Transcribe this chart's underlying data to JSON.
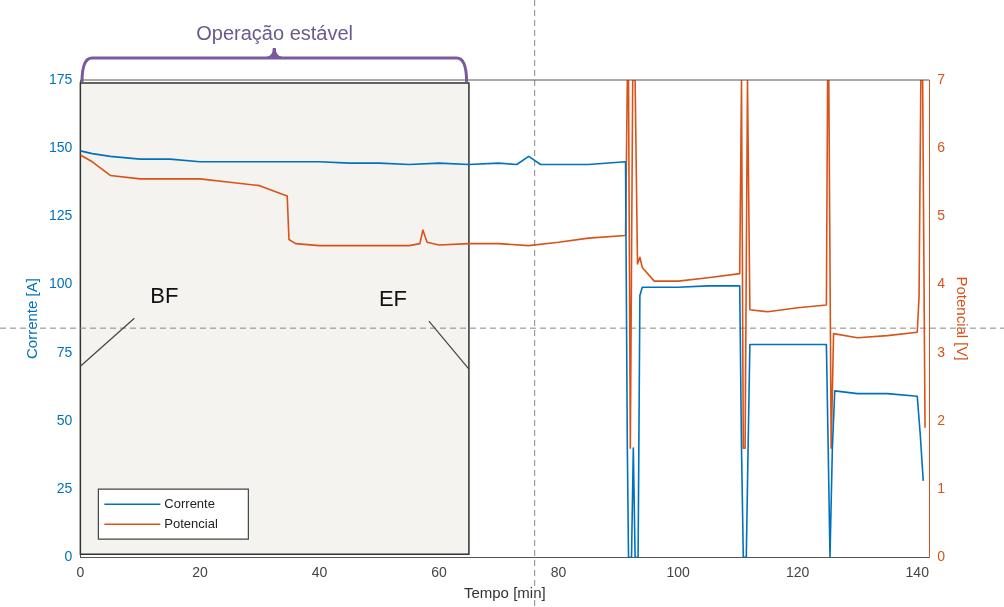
{
  "chart_data": {
    "type": "line",
    "xlabel": "Tempo [min]",
    "ylabel": "Corrente [A]",
    "y2label": "Potencial [V]",
    "xlim": [
      0,
      142
    ],
    "xticks": [
      0,
      20,
      40,
      60,
      80,
      100,
      120,
      140
    ],
    "ylim": [
      0,
      175
    ],
    "yticks": [
      0,
      25,
      50,
      75,
      100,
      125,
      150,
      175
    ],
    "y2lim": [
      0,
      7
    ],
    "y2ticks": [
      0,
      1,
      2,
      3,
      4,
      5,
      6,
      7
    ],
    "grid": false,
    "legend": "bottom left",
    "line_style": "solid",
    "marker": "none",
    "series": [
      {
        "name": "Corrente",
        "color": "#0072bd",
        "x": [
          0,
          2,
          5,
          10,
          15,
          20,
          25,
          30,
          35,
          40,
          45,
          50,
          55,
          60,
          65,
          70,
          73,
          75,
          77,
          80,
          85,
          91.2,
          91.5,
          91.7,
          92.2,
          92.5,
          92.8,
          93.3,
          93.6,
          94,
          100,
          105,
          110.3,
          110.6,
          110.9,
          111.4,
          111.7,
          112,
          115,
          120,
          124.8,
          125.1,
          125.4,
          125.8,
          126.2,
          130,
          135,
          140,
          140.5,
          141
        ],
        "values": [
          149,
          148,
          147,
          146,
          146,
          145,
          145,
          145,
          145,
          145,
          144.5,
          144.5,
          144,
          144.5,
          144,
          144.5,
          144,
          147,
          144,
          144,
          144,
          145,
          40,
          0,
          0,
          40,
          0,
          0,
          96,
          99,
          99,
          99.5,
          99.5,
          40,
          0,
          0,
          40,
          78,
          78,
          78,
          78,
          40,
          0,
          40,
          61,
          60,
          60,
          59,
          45,
          28
        ]
      },
      {
        "name": "Potencial",
        "color": "#d95319",
        "axis": "y2",
        "x": [
          0,
          2,
          5,
          10,
          15,
          20,
          25,
          30,
          33,
          34.6,
          34.9,
          36,
          40,
          45,
          50,
          55,
          56.8,
          57.3,
          58,
          60,
          65,
          70,
          75,
          80,
          85,
          91.2,
          91.5,
          91.7,
          92,
          92.4,
          92.8,
          93.2,
          93.6,
          94,
          96,
          100,
          105,
          110.3,
          110.6,
          110.9,
          111.2,
          111.6,
          112,
          115,
          120,
          124.8,
          125,
          125.2,
          125.6,
          126,
          130,
          135,
          140,
          140.3,
          140.6,
          140.9,
          141.3
        ],
        "values": [
          5.9,
          5.8,
          5.6,
          5.55,
          5.55,
          5.55,
          5.5,
          5.45,
          5.35,
          5.3,
          4.66,
          4.6,
          4.57,
          4.57,
          4.57,
          4.57,
          4.6,
          4.8,
          4.62,
          4.58,
          4.6,
          4.6,
          4.57,
          4.62,
          4.68,
          4.72,
          7,
          7,
          1.6,
          7,
          7,
          4.3,
          4.4,
          4.25,
          4.05,
          4.05,
          4.1,
          4.16,
          7,
          1.6,
          1.6,
          7,
          3.63,
          3.6,
          3.66,
          3.7,
          7,
          7,
          1.6,
          3.28,
          3.22,
          3.25,
          3.3,
          3.82,
          7,
          7,
          1.9
        ]
      }
    ],
    "bands": [
      {
        "axis": "x",
        "from": 0,
        "to": 65,
        "label": "Operação estável",
        "color": "#f4f3ef"
      }
    ],
    "ref_lines": [
      {
        "axis": "x",
        "value": 76,
        "color": "#888888",
        "line_style": "dashed"
      },
      {
        "axis": "y",
        "value": 84,
        "color": "#888888",
        "line_style": "dashed"
      }
    ],
    "annotations": [
      {
        "text": "BF",
        "x": 0,
        "y": 70
      },
      {
        "text": "EF",
        "x": 65,
        "y": 69
      }
    ]
  }
}
